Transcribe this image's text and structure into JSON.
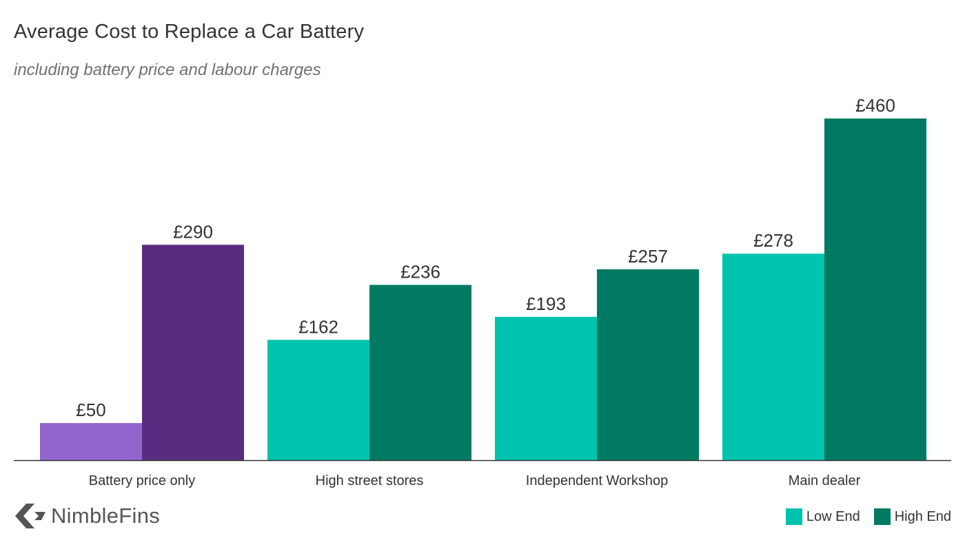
{
  "title": "Average Cost to Replace a Car Battery",
  "subtitle": "including battery price and labour charges",
  "brand": {
    "name": "NimbleFins",
    "icon": "nimblefins-logo-icon"
  },
  "legend": {
    "low_label": "Low End",
    "high_label": "High End"
  },
  "colors": {
    "battery_low": "#9066cd",
    "battery_high": "#582d80",
    "low": "#00c3af",
    "high": "#007a63",
    "axis": "#333333",
    "text": "#333333"
  },
  "chart_data": {
    "type": "bar",
    "categories": [
      "Battery price only",
      "High street stores",
      "Independent Workshop",
      "Main dealer"
    ],
    "series": [
      {
        "name": "Low End",
        "values": [
          50,
          162,
          193,
          278
        ],
        "labels": [
          "£50",
          "£162",
          "£193",
          "£278"
        ]
      },
      {
        "name": "High End",
        "values": [
          290,
          236,
          257,
          460
        ],
        "labels": [
          "£290",
          "£236",
          "£257",
          "£460"
        ]
      }
    ],
    "title": "Average Cost to Replace a Car Battery",
    "subtitle": "including battery price and labour charges",
    "xlabel": "",
    "ylabel": "",
    "ylim": [
      0,
      460
    ],
    "grid": false,
    "legend": "bottom-right"
  }
}
